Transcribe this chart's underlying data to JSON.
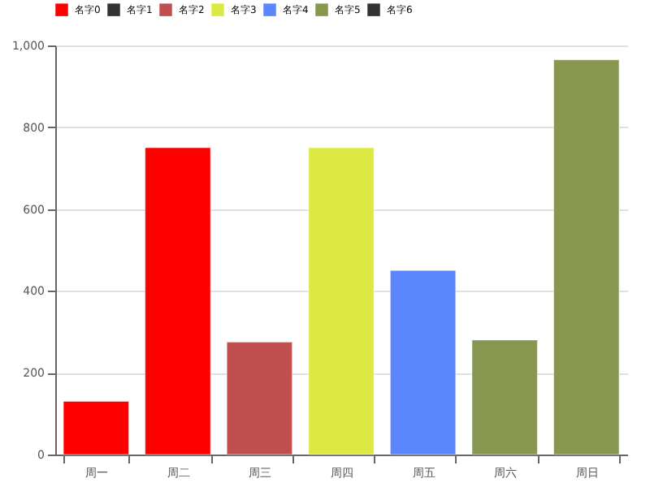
{
  "chart_data": {
    "type": "bar",
    "categories": [
      "周一",
      "周二",
      "周三",
      "周四",
      "周五",
      "周六",
      "周日"
    ],
    "series": [
      {
        "name": "名字0",
        "color": "#ff0000",
        "values": [
          130,
          750,
          null,
          null,
          null,
          null,
          null
        ]
      },
      {
        "name": "名字1",
        "color": "#333333",
        "values": [
          null,
          null,
          null,
          null,
          null,
          null,
          null
        ]
      },
      {
        "name": "名字2",
        "color": "#c05050",
        "values": [
          null,
          null,
          275,
          null,
          null,
          null,
          null
        ]
      },
      {
        "name": "名字3",
        "color": "#dbe942",
        "values": [
          null,
          null,
          null,
          750,
          null,
          null,
          null
        ]
      },
      {
        "name": "名字4",
        "color": "#5b86fc",
        "values": [
          null,
          null,
          null,
          null,
          450,
          null,
          null
        ]
      },
      {
        "name": "名字5",
        "color": "#87974f",
        "values": [
          null,
          null,
          null,
          null,
          null,
          280,
          965
        ]
      },
      {
        "name": "名字6",
        "color": "#333333",
        "values": [
          null,
          null,
          null,
          null,
          null,
          null,
          null
        ]
      }
    ],
    "stacked": true,
    "ylim": [
      0,
      1000
    ],
    "yticks": [
      0,
      200,
      400,
      600,
      800,
      {
        "value": 1000,
        "label": "1,000"
      }
    ],
    "grid": "y",
    "legend": "top"
  }
}
